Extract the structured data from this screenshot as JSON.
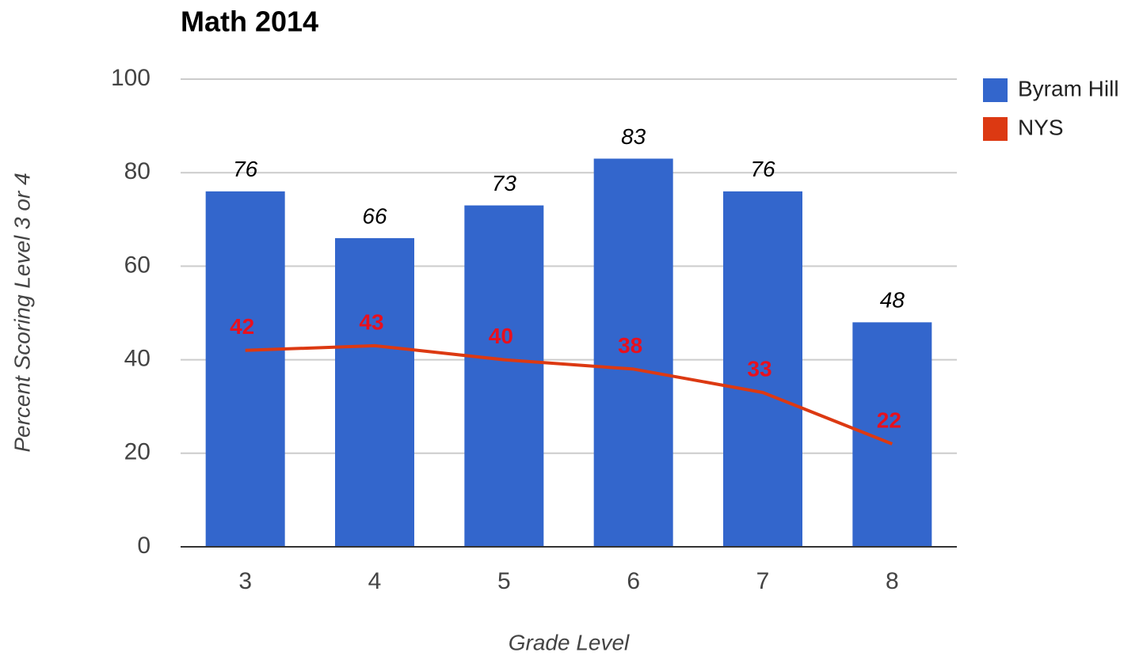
{
  "chart_data": {
    "type": "combo",
    "title": "Math 2014",
    "x_label": "Grade Level",
    "y_label": "Percent Scoring Level 3 or 4",
    "categories": [
      "3",
      "4",
      "5",
      "6",
      "7",
      "8"
    ],
    "series": [
      {
        "name": "Byram Hill",
        "type": "bar",
        "color": "#3366cc",
        "label_color": "#000000",
        "values": [
          76,
          66,
          73,
          83,
          76,
          48
        ]
      },
      {
        "name": "NYS",
        "type": "line",
        "color": "#dc3912",
        "label_color": "#e8101e",
        "values": [
          42,
          43,
          40,
          38,
          33,
          22
        ]
      }
    ],
    "ylim": [
      0,
      100
    ],
    "yticks": [
      0,
      20,
      40,
      60,
      80,
      100
    ],
    "grid": true,
    "legend": "right"
  }
}
